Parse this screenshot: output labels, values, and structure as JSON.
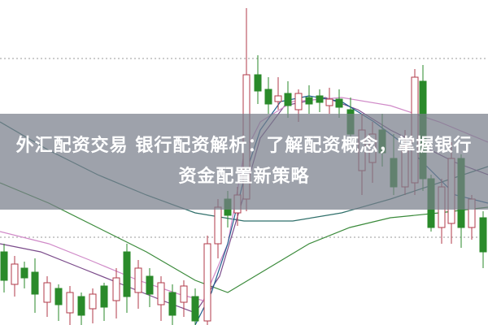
{
  "article": {
    "title": "外汇配资交易 银行配资解析：了解配资概念，掌握银行资金配置新策略"
  },
  "colors": {
    "up_candle": "#b03a48",
    "down_candle": "#2a8a2a",
    "banner": "#787e8a"
  }
}
